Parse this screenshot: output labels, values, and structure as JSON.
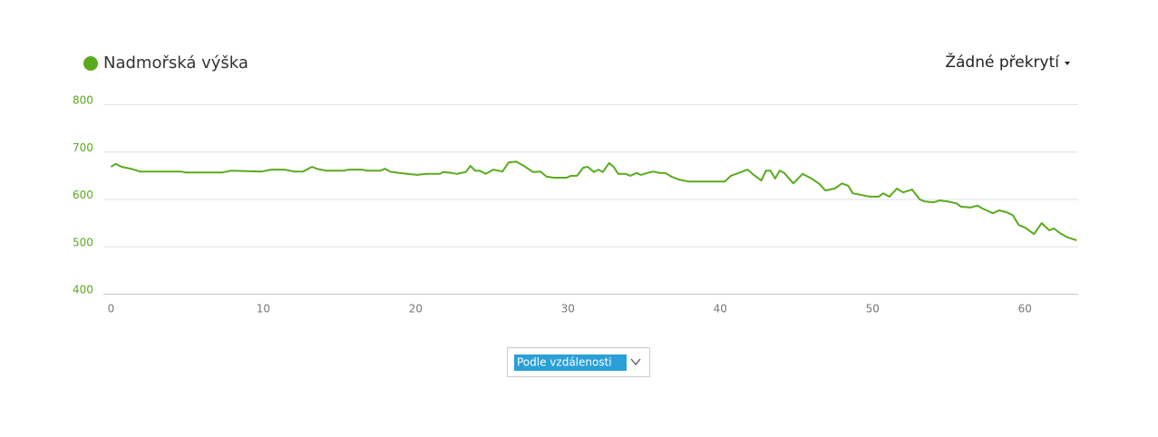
{
  "chart_data": {
    "type": "line",
    "series": [
      {
        "name": "Nadmořská výška",
        "color": "#5aaa1e",
        "values": [
          668,
          674,
          668,
          664,
          658,
          658,
          656,
          656,
          660,
          658,
          662,
          662,
          658,
          658,
          668,
          664,
          660,
          660,
          662,
          662,
          660,
          660,
          664,
          658,
          655,
          651,
          653,
          653,
          657,
          655,
          653,
          657,
          670,
          660,
          660,
          653,
          662,
          658,
          677,
          679,
          670,
          657,
          658,
          647,
          645,
          645,
          649,
          649,
          666,
          668,
          657,
          662,
          657,
          676,
          668,
          653,
          653,
          649,
          655,
          651,
          655,
          658,
          655,
          655,
          647,
          641,
          637,
          637,
          649,
          655,
          662,
          651,
          639,
          660,
          660,
          643,
          660,
          655,
          633,
          653,
          643,
          632,
          618,
          622,
          633,
          628,
          612,
          607,
          605,
          605,
          612,
          605,
          622,
          614,
          620,
          599,
          595,
          593,
          597,
          595,
          591,
          584,
          582,
          586,
          580,
          570,
          576,
          572,
          566,
          545,
          540,
          526,
          549,
          534,
          538,
          528,
          519,
          513
        ]
      }
    ],
    "x": [
      0,
      0.3,
      0.7,
      1.3,
      1.9,
      4.6,
      4.9,
      7.3,
      7.9,
      9.9,
      10.5,
      11.4,
      12.0,
      12.6,
      13.2,
      13.5,
      14.1,
      15.3,
      15.6,
      16.5,
      16.8,
      17.7,
      18.0,
      18.3,
      18.9,
      20.1,
      20.7,
      21.6,
      21.8,
      22.4,
      22.7,
      23.3,
      23.6,
      23.9,
      24.2,
      24.6,
      25.1,
      25.7,
      26.1,
      26.6,
      27.1,
      27.7,
      28.2,
      28.6,
      29.1,
      29.9,
      30.2,
      30.6,
      31.0,
      31.3,
      31.7,
      32.0,
      32.3,
      32.7,
      33.0,
      33.3,
      33.8,
      34.1,
      34.5,
      34.8,
      35.2,
      35.6,
      36.0,
      36.4,
      36.8,
      37.3,
      37.9,
      40.3,
      40.7,
      41.2,
      41.8,
      42.2,
      42.7,
      43.0,
      43.3,
      43.6,
      43.9,
      44.2,
      44.8,
      45.4,
      46.0,
      46.5,
      46.9,
      47.5,
      48.0,
      48.4,
      48.7,
      49.5,
      49.8,
      50.4,
      50.7,
      51.1,
      51.6,
      52.0,
      52.6,
      53.1,
      53.4,
      54.0,
      54.4,
      54.9,
      55.5,
      55.8,
      56.4,
      56.9,
      57.2,
      57.9,
      58.3,
      58.8,
      59.2,
      59.6,
      60.0,
      60.6,
      61.1,
      61.6,
      61.9,
      62.3,
      62.8,
      63.4
    ],
    "xlim": [
      -0.5,
      63.5
    ],
    "xticks": [
      0,
      10,
      20,
      30,
      40,
      50,
      60
    ],
    "ylim": [
      400,
      800
    ],
    "yticks": [
      400,
      500,
      600,
      700,
      800
    ],
    "grid": true
  },
  "overlay_menu": "Žádné překrytí",
  "x_mode_select": "Podle vzdálenosti"
}
